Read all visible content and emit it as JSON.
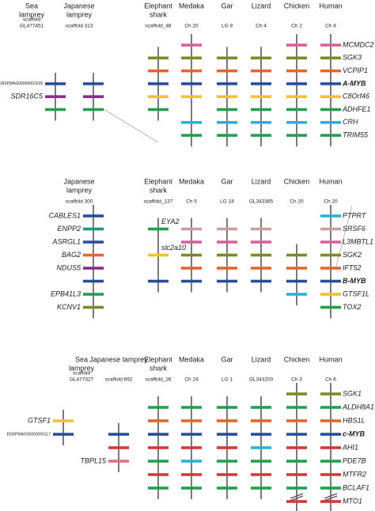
{
  "colors": {
    "pink": "#d9609e",
    "olive": "#7b8a2a",
    "orange": "#e8642c",
    "blue": "#2b4c9b",
    "yellow": "#f2c12e",
    "green": "#23a04f",
    "cyan": "#27b3d6",
    "purple": "#8b2d90",
    "red": "#d53a3a",
    "mauve": "#c8a0a0",
    "rose": "#e07080",
    "teal": "#1a9a80"
  },
  "panels": [
    {
      "bold_row": 3,
      "right_labels": [
        "MCMDC2",
        "SGK3",
        "VCPIP1",
        "A-MYB",
        "C8Orf46",
        "ADHFE1",
        "CRH",
        "TRIM55"
      ],
      "columns": [
        {
          "name": [
            "Sea",
            "lamprey"
          ],
          "scaffold": [
            "scaffold",
            "GL477451"
          ],
          "bars": [
            null,
            null,
            null,
            "blue",
            "purple",
            "green",
            null,
            null
          ],
          "labels": [
            null,
            null,
            null,
            "ENSPMAG00000001639",
            "SDR16C5",
            null,
            null,
            null
          ]
        },
        {
          "name": [
            "Japanese",
            "lamprey"
          ],
          "scaffold": [
            "scaffold 313"
          ],
          "bars": [
            null,
            null,
            null,
            "blue",
            "purple",
            "green",
            null,
            null
          ]
        },
        {
          "name": [
            "Elephant",
            "shark"
          ],
          "scaffold": [
            "scaffold_48"
          ],
          "bars": [
            null,
            "olive",
            "orange",
            "blue",
            "yellow",
            "green",
            null,
            null
          ]
        },
        {
          "name": [
            "Medaka"
          ],
          "scaffold": [
            "Ch 20"
          ],
          "bars": [
            "pink",
            "olive",
            "orange",
            "blue",
            "yellow",
            null,
            "cyan",
            "green"
          ]
        },
        {
          "name": [
            "Gar"
          ],
          "scaffold": [
            "LG 9"
          ],
          "bars": [
            null,
            "olive",
            "orange",
            "blue",
            "yellow",
            "green",
            "cyan",
            "green"
          ]
        },
        {
          "name": [
            "Lizard"
          ],
          "scaffold": [
            "Ch 4"
          ],
          "bars": [
            null,
            "olive",
            "orange",
            "blue",
            "yellow",
            "green",
            "cyan",
            "green"
          ]
        },
        {
          "name": [
            "Chicken"
          ],
          "scaffold": [
            "Ch 2"
          ],
          "bars": [
            "pink",
            "olive",
            "orange",
            "blue",
            "yellow",
            "green",
            "cyan",
            "green"
          ]
        },
        {
          "name": [
            "Human"
          ],
          "scaffold": [
            "Ch 8"
          ],
          "bars": [
            "pink",
            "olive",
            "orange",
            "blue",
            "yellow",
            "green",
            "cyan",
            "green"
          ]
        }
      ]
    },
    {
      "bold_row": 5,
      "right_labels": [
        "PTPRT",
        "SRSF6",
        "L3MBTL1",
        "SGK2",
        "IFT52",
        "B-MYB",
        "GTSF1L",
        "TOX2"
      ],
      "columns": [
        {
          "name": [
            "Japanese",
            "lamprey"
          ],
          "scaffold": [
            "scaffold 300"
          ],
          "bars": [
            "blue",
            "teal",
            "blue",
            "orange",
            "purple",
            "blue",
            "green",
            "olive"
          ],
          "labels": [
            "CABLES1",
            "ENPP2",
            "ASRGL1",
            "BAG2",
            "NDUS5",
            null,
            "EPB41L3",
            "KCNV1"
          ]
        },
        {
          "name": [
            "Elephant",
            "shark"
          ],
          "scaffold": [
            "scaffold_137"
          ],
          "bars": [
            null,
            "green",
            null,
            "yellow",
            null,
            "blue",
            null,
            null
          ],
          "labels": [
            null,
            "EYA2",
            null,
            "slc2a10",
            null,
            null,
            null,
            null
          ],
          "label_side": "right"
        },
        {
          "name": [
            "Medaka"
          ],
          "scaffold": [
            "Ch 5"
          ],
          "bars": [
            null,
            "mauve",
            "pink",
            "olive",
            "orange",
            "blue",
            null,
            null
          ]
        },
        {
          "name": [
            "Gar"
          ],
          "scaffold": [
            "LG 18"
          ],
          "bars": [
            null,
            "mauve",
            "pink",
            "olive",
            "orange",
            "blue",
            null,
            null
          ]
        },
        {
          "name": [
            "Lizard"
          ],
          "scaffold": [
            "GL343365"
          ],
          "bars": [
            null,
            "mauve",
            "pink",
            "olive",
            "orange",
            "blue",
            null,
            null
          ]
        },
        {
          "name": [
            "Chicken"
          ],
          "scaffold": [
            "Ch 20"
          ],
          "bars": [
            null,
            null,
            null,
            "olive",
            "orange",
            "blue",
            "cyan",
            null
          ]
        },
        {
          "name": [
            "Human"
          ],
          "scaffold": [
            "Ch 20"
          ],
          "bars": [
            "cyan",
            "mauve",
            "pink",
            "olive",
            "orange",
            "blue",
            "yellow",
            "green"
          ]
        }
      ]
    },
    {
      "bold_row": 3,
      "right_labels": [
        "SGK1",
        "ALDH8A1",
        "HBS1L",
        "c-MYB",
        "AHI1",
        "PDE7B",
        "MTFR2",
        "BCLAF1",
        "MTO1"
      ],
      "columns": [
        {
          "name": [
            "Sea",
            "lamprey"
          ],
          "scaffold": [
            "scaffold",
            "GL477327"
          ],
          "bars": [
            null,
            null,
            "yellow",
            "blue",
            null,
            null,
            null,
            null,
            null
          ],
          "labels": [
            null,
            null,
            "GTSF1",
            "ENSPMAG00000000117",
            null,
            null,
            null,
            null,
            null
          ]
        },
        {
          "name": [
            "Japanese lamprey"
          ],
          "scaffold": [
            "scaffold 692"
          ],
          "bars": [
            null,
            null,
            null,
            "blue",
            "red",
            "rose",
            null,
            null,
            null
          ],
          "labels": [
            null,
            null,
            null,
            null,
            null,
            "TBPL15",
            null,
            null,
            null
          ]
        },
        {
          "name": [
            "Elephant",
            "shark"
          ],
          "scaffold": [
            "scaffold_26"
          ],
          "bars": [
            null,
            "green",
            "orange",
            "blue",
            "red",
            "green",
            "red",
            "green",
            null
          ]
        },
        {
          "name": [
            "Medaka"
          ],
          "scaffold": [
            "Ch 24"
          ],
          "bars": [
            null,
            "green",
            "orange",
            "blue",
            "red",
            "cyan",
            "red",
            "green",
            null
          ]
        },
        {
          "name": [
            "Gar"
          ],
          "scaffold": [
            "LG 1"
          ],
          "bars": [
            null,
            "green",
            "orange",
            "blue",
            "red",
            "green",
            "red",
            "green",
            null
          ]
        },
        {
          "name": [
            "Lizard"
          ],
          "scaffold": [
            "GL343200"
          ],
          "bars": [
            null,
            "green",
            "orange",
            "blue",
            "cyan",
            "green",
            "red",
            "green",
            null
          ]
        },
        {
          "name": [
            "Chicken"
          ],
          "scaffold": [
            "Ch 3"
          ],
          "bars": [
            "olive",
            "green",
            "orange",
            "blue",
            "red",
            "green",
            "red",
            "green",
            "red"
          ]
        },
        {
          "name": [
            "Human"
          ],
          "scaffold": [
            "Ch 6"
          ],
          "bars": [
            "olive",
            "green",
            "orange",
            "blue",
            "red",
            "green",
            "red",
            "green",
            "red"
          ]
        }
      ]
    }
  ]
}
